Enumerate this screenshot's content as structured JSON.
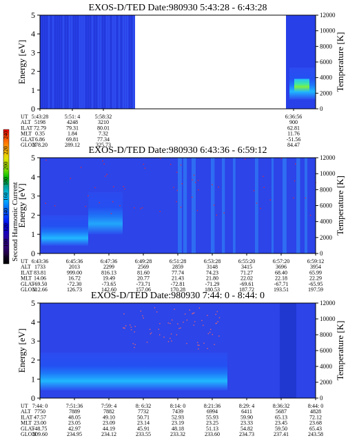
{
  "colorbar": {
    "label": "Second Harmonic Current",
    "ticks": [
      "240",
      "220",
      "200",
      "180",
      "160",
      "140",
      "120",
      "100",
      "80"
    ],
    "colors": [
      "#ff0000",
      "#ff5a00",
      "#ffa500",
      "#e0e000",
      "#90e000",
      "#00c000",
      "#00a0a0",
      "#00c8ff",
      "#0080ff",
      "#0040ff",
      "#0000e0",
      "#2000b0",
      "#300080",
      "#200040",
      "#000000"
    ]
  },
  "chart_data": [
    {
      "type": "heatmap",
      "title": "EXOS-D/TED   Date:980930   5:43:28 - 6:43:28",
      "ylabel": "Energy [eV]",
      "y2label": "Temperature [K]",
      "ylim": [
        0,
        5
      ],
      "y2lim": [
        0,
        12000
      ],
      "yticks": [
        "0",
        "1",
        "2",
        "3",
        "4",
        "5"
      ],
      "y2ticks": [
        "0",
        "2000",
        "4000",
        "6000",
        "8000",
        "10000",
        "12000"
      ],
      "x_ticks": [
        "5:43:28",
        "5:51: 4",
        "5:58:32",
        "6:36:56"
      ],
      "table_labels": [
        "UT",
        "ALT",
        "ILAT",
        "MLT",
        "GLAT",
        "GLON"
      ],
      "table_columns": [
        [
          "5:43:28",
          "5198",
          "72.79",
          "0.35",
          "6.86",
          "278.20"
        ],
        [
          "5:51: 4",
          "4248",
          "79.31",
          "1.84",
          "69.81",
          "289.12"
        ],
        [
          "5:58:32",
          "3210",
          "80.01",
          "7.32",
          "77.34",
          "325.73"
        ],
        [
          "6:36:56",
          "900",
          "62.81",
          "11.76",
          "-51.56",
          "84.47"
        ]
      ],
      "data_gap": [
        "5:58:32",
        "6:36:56"
      ]
    },
    {
      "type": "heatmap",
      "title": "EXOS-D/TED   Date:980930   6:43:36 - 6:59:12",
      "ylabel": "Energy [eV]",
      "y2label": "Temperature [K]",
      "ylim": [
        0,
        5
      ],
      "y2lim": [
        0,
        12000
      ],
      "yticks": [
        "0",
        "1",
        "2",
        "3",
        "4",
        "5"
      ],
      "y2ticks": [
        "0",
        "2000",
        "4000",
        "6000",
        "8000",
        "10000",
        "12000"
      ],
      "x_ticks": [
        "6:43:36",
        "6:45:36",
        "6:47:36",
        "6:49:28",
        "6:51:28",
        "6:53:28",
        "6:55:20",
        "6:57:20",
        "6:59:12"
      ],
      "table_labels": [
        "UT",
        "ALT",
        "ILAT",
        "MLT",
        "GLAT",
        "GLON"
      ],
      "table_columns": [
        [
          "6:43:36",
          "1733",
          "83.81",
          "14.06",
          "-69.50",
          "112.66"
        ],
        [
          "6:45:36",
          "2013",
          "999.00",
          "16.72",
          "-72.30",
          "126.73"
        ],
        [
          "6:47:36",
          "2299",
          "816.13",
          "19.49",
          "-73.65",
          "142.60"
        ],
        [
          "6:49:28",
          "2569",
          "81.60",
          "20.77",
          "-73.71",
          "157.06"
        ],
        [
          "6:51:28",
          "2859",
          "77.74",
          "21.43",
          "-72.81",
          "170.28"
        ],
        [
          "6:53:28",
          "3148",
          "74.23",
          "21.80",
          "-71.29",
          "180.53"
        ],
        [
          "6:55:20",
          "3415",
          "71.27",
          "22.02",
          "-69.61",
          "187.72"
        ],
        [
          "6:57:20",
          "3696",
          "68.40",
          "22.18",
          "-67.71",
          "193.51"
        ],
        [
          "6:59:12",
          "3954",
          "65.99",
          "22.29",
          "-65.95",
          "197.59"
        ]
      ]
    },
    {
      "type": "heatmap",
      "title": "EXOS-D/TED   Date:980930   7:44: 0 - 8:44: 0",
      "ylabel": "Energy [eV]",
      "y2label": "Temperature [K]",
      "ylim": [
        0,
        5
      ],
      "y2lim": [
        0,
        12000
      ],
      "yticks": [
        "0",
        "1",
        "2",
        "3",
        "4",
        "5"
      ],
      "y2ticks": [
        "0",
        "2000",
        "4000",
        "6000",
        "8000",
        "10000",
        "12000"
      ],
      "x_ticks": [
        "7:44: 0",
        "7:51:36",
        "7:59: 4",
        "8: 6:32",
        "8:14: 0",
        "8:21:36",
        "8:29: 4",
        "8:36:32",
        "8:44: 0"
      ],
      "table_labels": [
        "UT",
        "ALT",
        "ILAT",
        "MLT",
        "GLAT",
        "GLON"
      ],
      "table_columns": [
        [
          "7:44: 0",
          "7750",
          "47.57",
          "23.00",
          "-48.75",
          "209.60"
        ],
        [
          "7:51:36",
          "7889",
          "48.05",
          "23.05",
          "42.97",
          "234.95"
        ],
        [
          "7:59: 4",
          "7882",
          "49.10",
          "23.09",
          "44.19",
          "234.12"
        ],
        [
          "8: 6:32",
          "7732",
          "50.71",
          "23.14",
          "45.91",
          "233.55"
        ],
        [
          "8:14: 0",
          "7439",
          "52.93",
          "23.19",
          "48.18",
          "233.32"
        ],
        [
          "8:21:36",
          "6994",
          "55.93",
          "23.25",
          "51.13",
          "233.60"
        ],
        [
          "8:29: 4",
          "6411",
          "59.90",
          "23.33",
          "54.82",
          "234.73"
        ],
        [
          "8:36:32",
          "5687",
          "65.13",
          "23.45",
          "59.50",
          "237.41"
        ],
        [
          "8:44: 0",
          "4828",
          "72.12",
          "23.68",
          "65.43",
          "243.58"
        ]
      ]
    }
  ]
}
